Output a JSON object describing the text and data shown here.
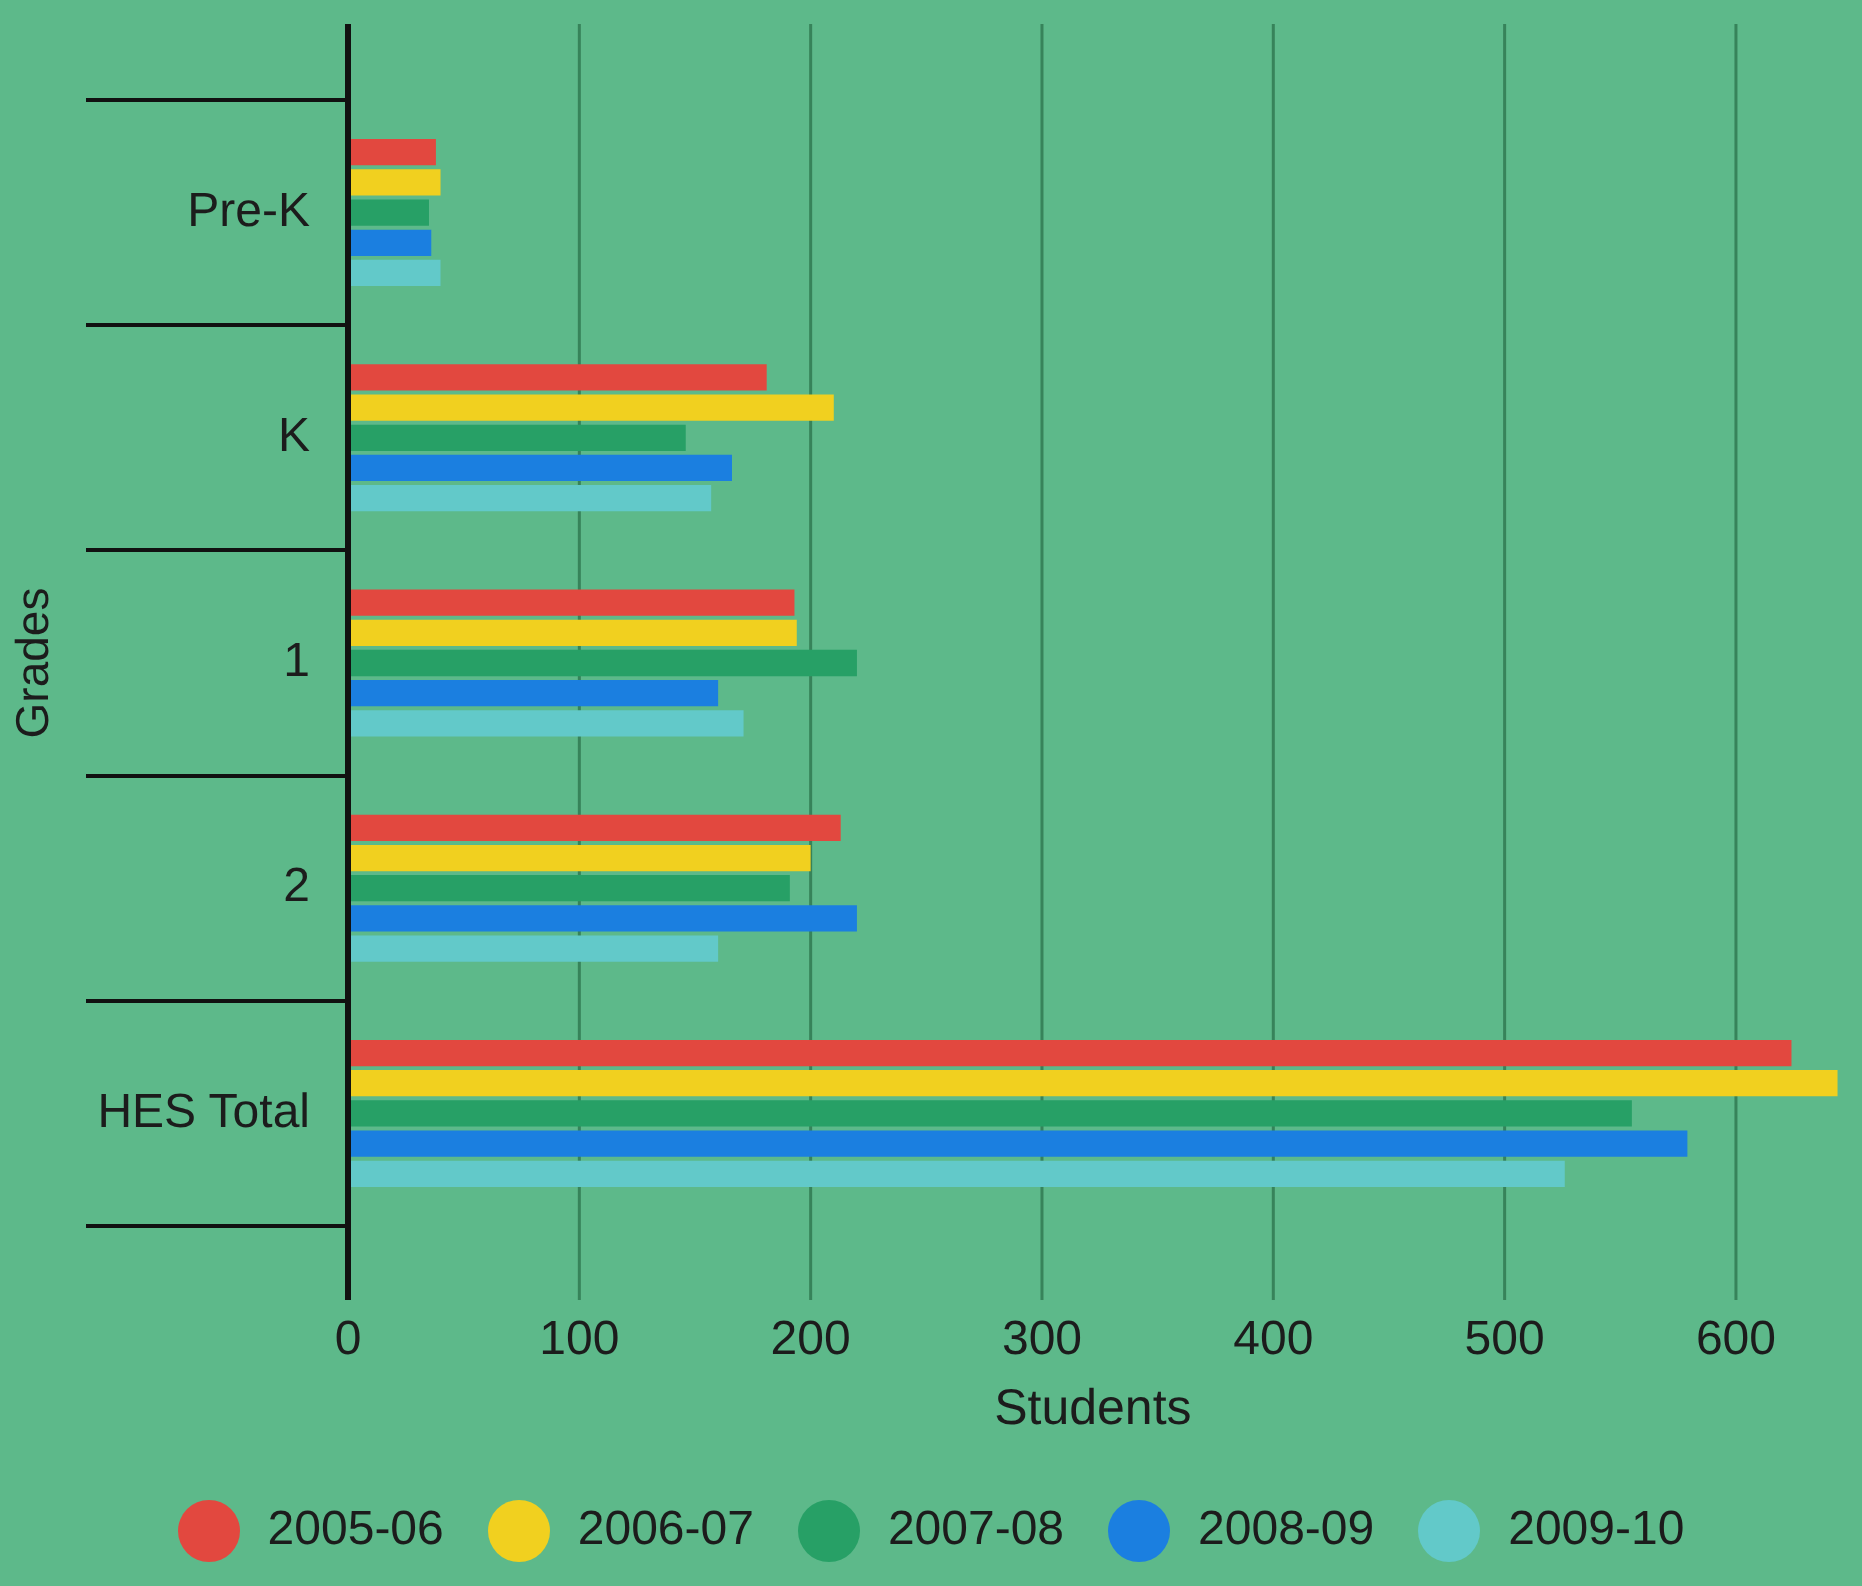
{
  "chart_data": {
    "type": "bar",
    "orientation": "horizontal",
    "xlabel": "Students",
    "ylabel": "Grades",
    "categories": [
      "Pre-K",
      "K",
      "1",
      "2",
      "HES Total"
    ],
    "series": [
      {
        "name": "2005-06",
        "color": "#e2483f",
        "values": [
          38,
          181,
          193,
          213,
          624
        ]
      },
      {
        "name": "2006-07",
        "color": "#f1d01f",
        "values": [
          40,
          210,
          194,
          200,
          644
        ]
      },
      {
        "name": "2007-08",
        "color": "#27a066",
        "values": [
          35,
          146,
          220,
          191,
          555
        ]
      },
      {
        "name": "2008-09",
        "color": "#1b7fe0",
        "values": [
          36,
          166,
          160,
          220,
          579
        ]
      },
      {
        "name": "2009-10",
        "color": "#62c9c9",
        "values": [
          40,
          157,
          171,
          160,
          526
        ]
      }
    ],
    "xlim": [
      0,
      644
    ],
    "xticks": [
      0,
      100,
      200,
      300,
      400,
      500,
      600
    ],
    "grid": "x",
    "legend": "bottom"
  }
}
